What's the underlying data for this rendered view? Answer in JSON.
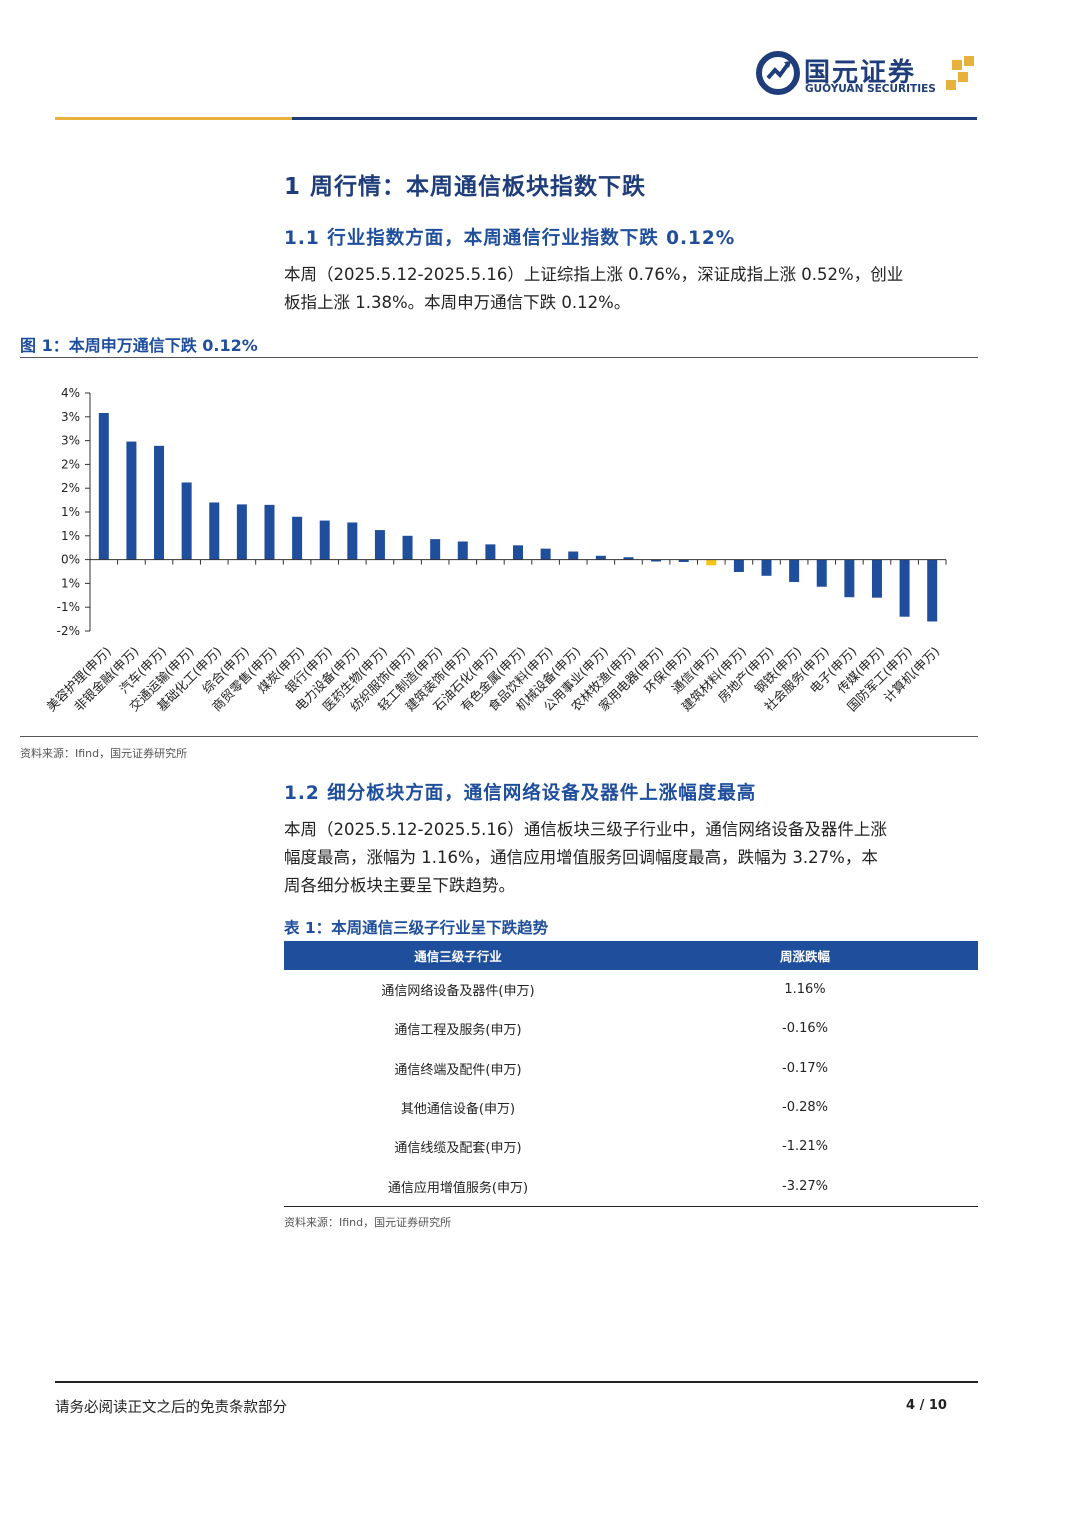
{
  "header": {
    "logo_cn": "国元证券",
    "logo_en": "GUOYUAN SECURITIES"
  },
  "section1": {
    "title": "1 周行情：本周通信板块指数下跌",
    "sub1_title": "1.1 行业指数方面，本周通信行业指数下跌 0.12%",
    "sub1_para_line1": "本周（2025.5.12-2025.5.16）上证综指上涨 0.76%，深证成指上涨 0.52%，创业",
    "sub1_para_line2": "板指上涨 1.38%。本周申万通信下跌 0.12%。",
    "figure_title": "图 1：本周申万通信下跌 0.12%",
    "figure_source": "资料来源：Ifind，国元证券研究所",
    "sub2_title": "1.2 细分板块方面，通信网络设备及器件上涨幅度最高",
    "sub2_para_line1": "本周（2025.5.12-2025.5.16）通信板块三级子行业中，通信网络设备及器件上涨",
    "sub2_para_line2": "幅度最高，涨幅为 1.16%，通信应用增值服务回调幅度最高，跌幅为 3.27%，本",
    "sub2_para_line3": "周各细分板块主要呈下跌趋势。",
    "table_title": "表 1：本周通信三级子行业呈下跌趋势",
    "table_source": "资料来源：Ifind，国元证券研究所"
  },
  "table": {
    "headers": [
      "通信三级子行业",
      "周涨跌幅"
    ],
    "rows": [
      [
        "通信网络设备及器件(申万)",
        "1.16%"
      ],
      [
        "通信工程及服务(申万)",
        "-0.16%"
      ],
      [
        "通信终端及配件(申万)",
        "-0.17%"
      ],
      [
        "其他通信设备(申万)",
        "-0.28%"
      ],
      [
        "通信线缆及配套(申万)",
        "-1.21%"
      ],
      [
        "通信应用增值服务(申万)",
        "-3.27%"
      ]
    ]
  },
  "footer": {
    "disclaimer": "请务必阅读正文之后的免责条款部分",
    "page": "4 / 10"
  },
  "colors": {
    "brand": "#1f3d7a",
    "bar": "#1f4e9c",
    "highlight": "#f5c518",
    "accent_gold": "#e8b13b"
  },
  "chart_data": {
    "type": "bar",
    "title": "",
    "xlabel": "",
    "ylabel": "",
    "ylim": [
      -1.5,
      3.5
    ],
    "y_tick_values": [
      3.5,
      3.0,
      2.5,
      2.0,
      1.5,
      1.0,
      0.5,
      0.0,
      -0.5,
      -1.0,
      -1.5
    ],
    "y_tick_labels": [
      "4%",
      "3%",
      "3%",
      "2%",
      "2%",
      "1%",
      "1%",
      "0%",
      "1%",
      "-1%",
      "-2%"
    ],
    "highlight_category": "通信(申万)",
    "categories": [
      "美容护理(申万)",
      "非银金融(申万)",
      "汽车(申万)",
      "交通运输(申万)",
      "基础化工(申万)",
      "综合(申万)",
      "商贸零售(申万)",
      "煤炭(申万)",
      "银行(申万)",
      "电力设备(申万)",
      "医药生物(申万)",
      "纺织服饰(申万)",
      "轻工制造(申万)",
      "建筑装饰(申万)",
      "石油石化(申万)",
      "有色金属(申万)",
      "食品饮料(申万)",
      "机械设备(申万)",
      "公用事业(申万)",
      "农林牧渔(申万)",
      "家用电器(申万)",
      "环保(申万)",
      "通信(申万)",
      "建筑材料(申万)",
      "房地产(申万)",
      "钢铁(申万)",
      "社会服务(申万)",
      "电子(申万)",
      "传媒(申万)",
      "国防军工(申万)",
      "计算机(申万)"
    ],
    "values": [
      3.08,
      2.48,
      2.39,
      1.62,
      1.2,
      1.16,
      1.15,
      0.9,
      0.82,
      0.78,
      0.62,
      0.5,
      0.43,
      0.38,
      0.32,
      0.3,
      0.23,
      0.17,
      0.08,
      0.05,
      -0.04,
      -0.05,
      -0.12,
      -0.26,
      -0.34,
      -0.47,
      -0.57,
      -0.79,
      -0.8,
      -1.2,
      -1.3
    ]
  }
}
